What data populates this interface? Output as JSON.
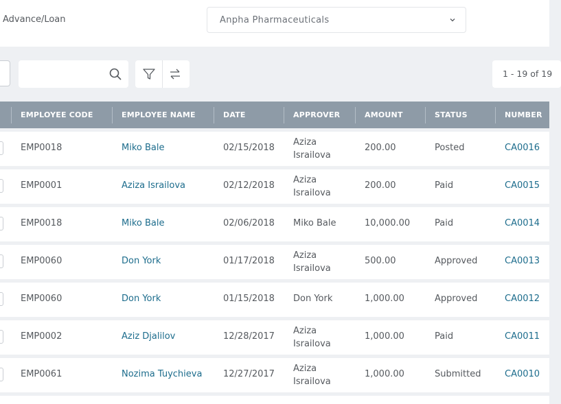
{
  "header": {
    "breadcrumb": "Advance/Loan",
    "company": "Anpha Pharmaceuticals"
  },
  "toolbar": {
    "search_placeholder": "",
    "pagination": "1 - 19 of 19"
  },
  "table": {
    "columns": [
      "EMPLOYEE CODE",
      "EMPLOYEE NAME",
      "DATE",
      "APPROVER",
      "AMOUNT",
      "STATUS",
      "NUMBER"
    ],
    "rows": [
      {
        "code": "EMP0018",
        "name": "Miko Bale",
        "date": "02/15/2018",
        "approver": "Aziza Israilova",
        "amount": "200.00",
        "status": "Posted",
        "number": "CA0016"
      },
      {
        "code": "EMP0001",
        "name": "Aziza Israilova",
        "date": "02/12/2018",
        "approver": "Aziza Israilova",
        "amount": "200.00",
        "status": "Paid",
        "number": "CA0015"
      },
      {
        "code": "EMP0018",
        "name": "Miko Bale",
        "date": "02/06/2018",
        "approver": "Miko Bale",
        "amount": "10,000.00",
        "status": "Paid",
        "number": "CA0014"
      },
      {
        "code": "EMP0060",
        "name": "Don York",
        "date": "01/17/2018",
        "approver": "Aziza Israilova",
        "amount": "500.00",
        "status": "Approved",
        "number": "CA0013"
      },
      {
        "code": "EMP0060",
        "name": "Don York",
        "date": "01/15/2018",
        "approver": "Don York",
        "amount": "1,000.00",
        "status": "Approved",
        "number": "CA0012"
      },
      {
        "code": "EMP0002",
        "name": "Aziz Djalilov",
        "date": "12/28/2017",
        "approver": "Aziza Israilova",
        "amount": "1,000.00",
        "status": "Paid",
        "number": "CA0011"
      },
      {
        "code": "EMP0061",
        "name": "Nozima Tuychieva",
        "date": "12/27/2017",
        "approver": "Aziza Israilova",
        "amount": "1,000.00",
        "status": "Submitted",
        "number": "CA0010"
      }
    ]
  },
  "colors": {
    "header_bg": "#8e9ba7",
    "link": "#1c6c8c",
    "page_bg": "#eef0f3"
  },
  "icons": {
    "search": "search-icon",
    "filter": "filter-icon",
    "swap": "swap-icon",
    "dropdown": "chevron-down-icon"
  }
}
